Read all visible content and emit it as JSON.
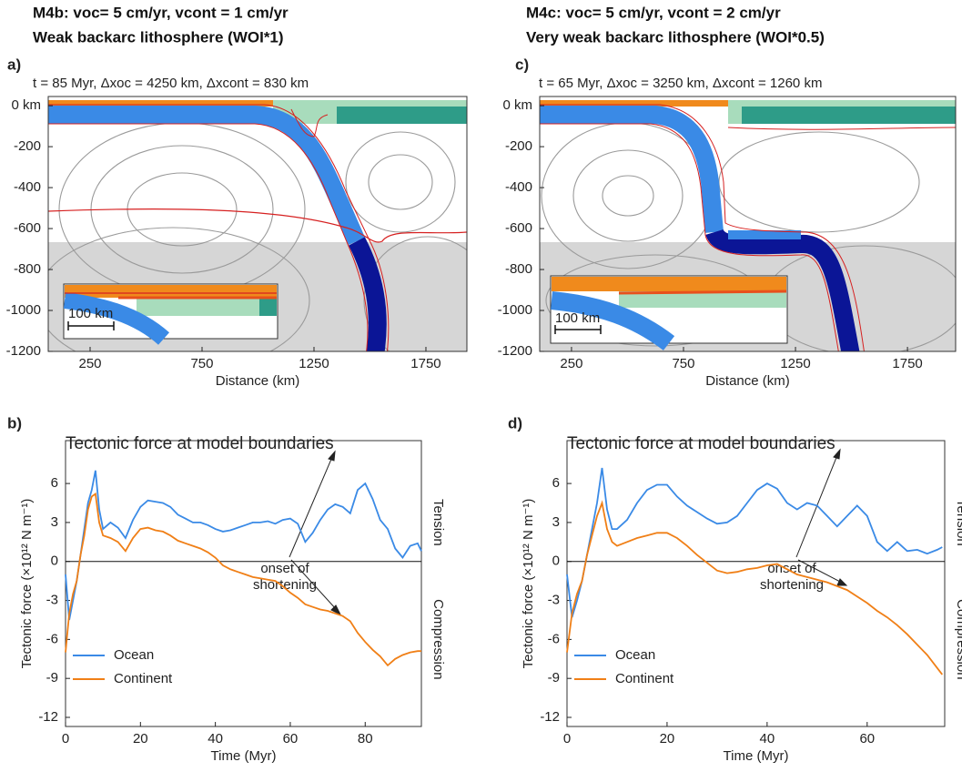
{
  "chart_data": [
    {
      "type": "model",
      "heading": [
        "M4b: voc= 5 cm/yr,  vcont = 1 cm/yr",
        "Weak backarc lithosphere (WOI*1)"
      ],
      "panel_label": "a)",
      "title": "t = 85 Myr, Δxoc = 4250 km, Δxcont = 830 km",
      "xlabel": "Distance (km)",
      "xlim": [
        63,
        1933
      ],
      "xticks": [
        250,
        750,
        1250,
        1750
      ],
      "ylim": [
        -1200,
        45
      ],
      "yticks": [
        {
          "value": 0,
          "label": "0 km"
        },
        -200,
        -400,
        -600,
        -800,
        -1000,
        -1200
      ],
      "inset_label": "100 km"
    },
    {
      "type": "line",
      "panel_label": "b)",
      "title": "Tectonic force at model boundaries",
      "xlabel": "Time (Myr)",
      "ylabel": "Tectonic force (×10¹² N m⁻¹)",
      "right_labels": [
        "Tension",
        "Compression"
      ],
      "annotation": [
        "onset of",
        "shortening"
      ],
      "legend": "lower left",
      "xlim": [
        0,
        95
      ],
      "xticks": [
        0,
        20,
        40,
        60,
        80
      ],
      "ylim": [
        -12.7,
        9.3
      ],
      "yticks": [
        6,
        3,
        0,
        -3,
        -6,
        -9,
        -12
      ],
      "x": [
        0,
        1,
        2,
        3,
        4,
        5,
        6,
        7,
        8,
        9,
        10,
        12,
        14,
        16,
        18,
        20,
        22,
        24,
        26,
        28,
        30,
        32,
        34,
        36,
        38,
        40,
        42,
        44,
        46,
        48,
        50,
        52,
        54,
        56,
        58,
        60,
        62,
        64,
        66,
        68,
        70,
        72,
        74,
        76,
        78,
        80,
        82,
        84,
        86,
        88,
        90,
        92,
        94,
        95
      ],
      "series": [
        {
          "name": "Ocean",
          "color": "#3a8ae6",
          "values": [
            -1,
            -4.5,
            -3,
            -1.5,
            0.5,
            2.5,
            4.5,
            5.5,
            7,
            4,
            2.5,
            3,
            2.6,
            1.8,
            3.2,
            4.2,
            4.7,
            4.6,
            4.5,
            4.2,
            3.6,
            3.3,
            3,
            3,
            2.8,
            2.5,
            2.3,
            2.4,
            2.6,
            2.8,
            3,
            3,
            3.1,
            2.9,
            3.2,
            3.3,
            2.9,
            1.5,
            2.2,
            3.2,
            4,
            4.4,
            4.2,
            3.7,
            5.5,
            6,
            4.8,
            3.2,
            2.5,
            1,
            0.3,
            1.2,
            1.4,
            0.8
          ]
        },
        {
          "name": "Continent",
          "color": "#f07f16",
          "values": [
            -7,
            -4,
            -2.5,
            -1.5,
            0.5,
            2,
            4,
            5,
            5.2,
            3,
            2,
            1.8,
            1.5,
            0.8,
            1.8,
            2.5,
            2.6,
            2.4,
            2.3,
            2,
            1.6,
            1.4,
            1.2,
            1,
            0.7,
            0.3,
            -0.3,
            -0.6,
            -0.8,
            -1,
            -1.2,
            -1.3,
            -1.4,
            -1.5,
            -1.9,
            -2.4,
            -2.8,
            -3.3,
            -3.5,
            -3.7,
            -3.8,
            -4,
            -4.2,
            -4.6,
            -5.5,
            -6.2,
            -6.8,
            -7.3,
            -8,
            -7.5,
            -7.2,
            -7,
            -6.9,
            -6.9
          ]
        }
      ]
    },
    {
      "type": "model",
      "heading": [
        "M4c: voc= 5 cm/yr,  vcont = 2 cm/yr",
        "Very weak backarc lithosphere (WOI*0.5)"
      ],
      "panel_label": "c)",
      "title": "t = 65 Myr, Δxoc = 3250 km, Δxcont = 1260 km",
      "xlabel": "Distance (km)",
      "xlim": [
        108,
        1965
      ],
      "xticks": [
        250,
        750,
        1250,
        1750
      ],
      "ylim": [
        -1200,
        45
      ],
      "yticks": [
        {
          "value": 0,
          "label": "0 km"
        },
        -200,
        -400,
        -600,
        -800,
        -1000,
        -1200
      ],
      "inset_label": "100 km"
    },
    {
      "type": "line",
      "panel_label": "d)",
      "title": "Tectonic force at model boundaries",
      "xlabel": "Time (Myr)",
      "ylabel": "Tectonic force (×10¹² N m⁻¹)",
      "right_labels": [
        "Tension",
        "Compression"
      ],
      "annotation": [
        "onset of",
        "shortening"
      ],
      "legend": "lower left",
      "xlim": [
        0,
        75.5
      ],
      "xticks": [
        0,
        20,
        40,
        60
      ],
      "ylim": [
        -12.7,
        9.3
      ],
      "yticks": [
        6,
        3,
        0,
        -3,
        -6,
        -9,
        -12
      ],
      "x": [
        0,
        1,
        2,
        3,
        4,
        5,
        6,
        7,
        8,
        9,
        10,
        12,
        14,
        16,
        18,
        20,
        22,
        24,
        26,
        28,
        30,
        32,
        34,
        36,
        38,
        40,
        42,
        44,
        46,
        48,
        50,
        52,
        54,
        56,
        58,
        60,
        62,
        64,
        66,
        68,
        70,
        72,
        74,
        75
      ],
      "series": [
        {
          "name": "Ocean",
          "color": "#3a8ae6",
          "values": [
            -1,
            -4.3,
            -3,
            -1.5,
            0.5,
            2.5,
            4.5,
            7.2,
            4,
            2.5,
            2.5,
            3.2,
            4.5,
            5.5,
            5.9,
            5.9,
            5,
            4.3,
            3.8,
            3.3,
            2.9,
            3,
            3.5,
            4.5,
            5.5,
            6,
            5.6,
            4.5,
            4,
            4.5,
            4.3,
            3.5,
            2.7,
            3.5,
            4.3,
            3.5,
            1.5,
            0.8,
            1.5,
            0.8,
            0.9,
            0.6,
            0.9,
            1.1
          ]
        },
        {
          "name": "Continent",
          "color": "#f07f16",
          "values": [
            -7,
            -4,
            -2.5,
            -1.5,
            0.5,
            2,
            3.5,
            4.5,
            2.5,
            1.5,
            1.2,
            1.5,
            1.8,
            2,
            2.2,
            2.2,
            1.8,
            1.2,
            0.5,
            -0.1,
            -0.7,
            -0.9,
            -0.8,
            -0.6,
            -0.5,
            -0.3,
            -0.2,
            -0.6,
            -1,
            -1.2,
            -1.4,
            -1.6,
            -1.9,
            -2.2,
            -2.7,
            -3.2,
            -3.8,
            -4.3,
            -4.9,
            -5.6,
            -6.4,
            -7.2,
            -8.2,
            -8.7
          ]
        }
      ]
    }
  ]
}
